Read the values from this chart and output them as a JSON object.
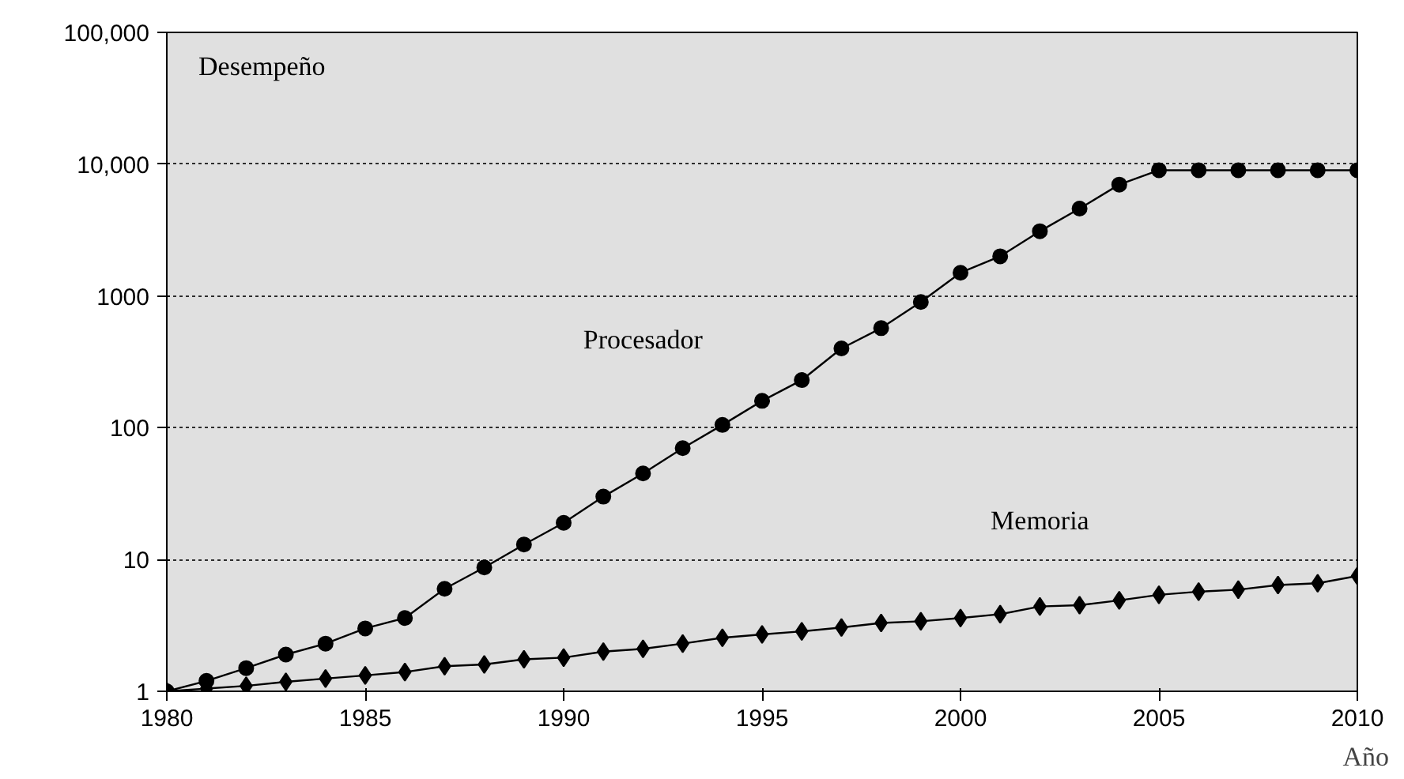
{
  "chart_data": {
    "type": "line",
    "ylabel": "Desempeño",
    "xlabel": "Año",
    "log": "y",
    "grid": "y",
    "line_style": "solid",
    "x": [
      1980,
      1981,
      1982,
      1983,
      1984,
      1985,
      1986,
      1987,
      1988,
      1989,
      1990,
      1991,
      1992,
      1993,
      1994,
      1995,
      1996,
      1997,
      1998,
      1999,
      2000,
      2001,
      2002,
      2003,
      2004,
      2005,
      2006,
      2007,
      2008,
      2009,
      2010
    ],
    "xlim": [
      1980,
      2010
    ],
    "xticks": [
      1980,
      1985,
      1990,
      1995,
      2000,
      2005,
      2010
    ],
    "ylim": [
      1,
      100000
    ],
    "yticks": [
      1,
      10,
      100,
      1000,
      {
        "value": 10000,
        "label": "10,000"
      },
      {
        "value": 100000,
        "label": "100,000"
      }
    ],
    "series": [
      {
        "name": "Procesador",
        "color": "#000000",
        "marker": "circle",
        "values": [
          1,
          1.2,
          1.5,
          1.9,
          2.3,
          3.0,
          3.6,
          6,
          8.7,
          13,
          19,
          30,
          45,
          70,
          105,
          160,
          230,
          400,
          570,
          900,
          1500,
          2000,
          3100,
          4600,
          7000,
          9000,
          9000,
          9000,
          9000,
          9000,
          9000
        ]
      },
      {
        "name": "Memoria",
        "color": "#000000",
        "marker": "diamond",
        "values": [
          1,
          1.05,
          1.1,
          1.18,
          1.25,
          1.32,
          1.4,
          1.55,
          1.6,
          1.75,
          1.8,
          2.0,
          2.1,
          2.3,
          2.55,
          2.7,
          2.85,
          3.05,
          3.3,
          3.4,
          3.6,
          3.85,
          4.4,
          4.5,
          4.9,
          5.4,
          5.7,
          5.9,
          6.4,
          6.6,
          7.5
        ]
      }
    ]
  }
}
